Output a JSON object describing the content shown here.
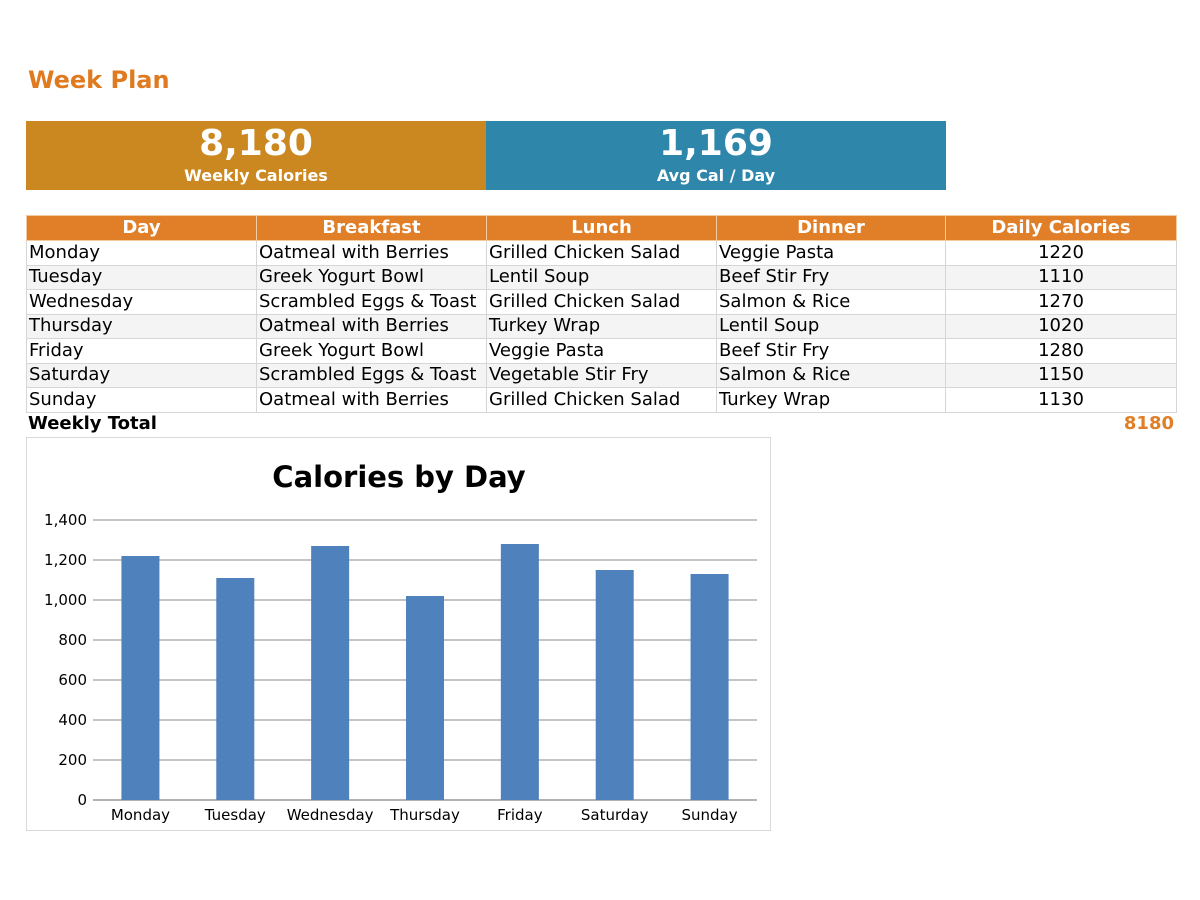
{
  "page": {
    "title": "Week Plan"
  },
  "kpis": [
    {
      "value": "8,180",
      "label": "Weekly Calories",
      "color": "#cc8820"
    },
    {
      "value": "1,169",
      "label": "Avg Cal / Day",
      "color": "#2e86ab"
    }
  ],
  "table": {
    "headers": [
      "Day",
      "Breakfast",
      "Lunch",
      "Dinner",
      "Daily Calories"
    ],
    "rows": [
      [
        "Monday",
        "Oatmeal with Berries",
        "Grilled Chicken Salad",
        "Veggie Pasta",
        "1220"
      ],
      [
        "Tuesday",
        "Greek Yogurt Bowl",
        "Lentil Soup",
        "Beef Stir Fry",
        "1110"
      ],
      [
        "Wednesday",
        "Scrambled Eggs & Toast",
        "Grilled Chicken Salad",
        "Salmon & Rice",
        "1270"
      ],
      [
        "Thursday",
        "Oatmeal with Berries",
        "Turkey Wrap",
        "Lentil Soup",
        "1020"
      ],
      [
        "Friday",
        "Greek Yogurt Bowl",
        "Veggie Pasta",
        "Beef Stir Fry",
        "1280"
      ],
      [
        "Saturday",
        "Scrambled Eggs & Toast",
        "Vegetable Stir Fry",
        "Salmon & Rice",
        "1150"
      ],
      [
        "Sunday",
        "Oatmeal with Berries",
        "Grilled Chicken Salad",
        "Turkey Wrap",
        "1130"
      ]
    ],
    "total_label": "Weekly Total",
    "total_value": "8180",
    "header_color": "#e07f28"
  },
  "chart_data": {
    "type": "bar",
    "title": "Calories by Day",
    "categories": [
      "Monday",
      "Tuesday",
      "Wednesday",
      "Thursday",
      "Friday",
      "Saturday",
      "Sunday"
    ],
    "values": [
      1220,
      1110,
      1270,
      1020,
      1280,
      1150,
      1130
    ],
    "ylim": [
      0,
      1400
    ],
    "yticks": [
      "0",
      "200",
      "400",
      "600",
      "800",
      "1,000",
      "1,200",
      "1,400"
    ],
    "grid": true,
    "legend": "none",
    "bar_color": "#4f81bd"
  }
}
